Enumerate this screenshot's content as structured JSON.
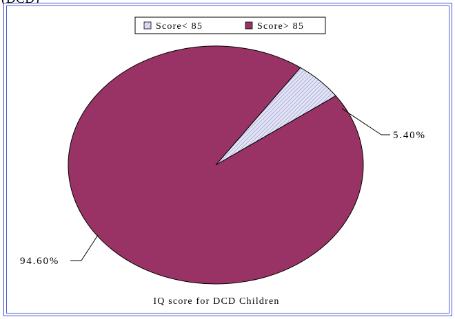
{
  "top_fragment": "(DCD)",
  "chart_data": {
    "type": "pie",
    "title": "IQ score for DCD Children",
    "legend_position": "top",
    "slices": [
      {
        "name": "Score< 85",
        "label": "5.40%",
        "value": 5.4,
        "color": "#d7d9f0",
        "pattern": "diagonal-hatch"
      },
      {
        "name": "Score> 85",
        "label": "94.60%",
        "value": 94.6,
        "color": "#993366"
      }
    ]
  }
}
